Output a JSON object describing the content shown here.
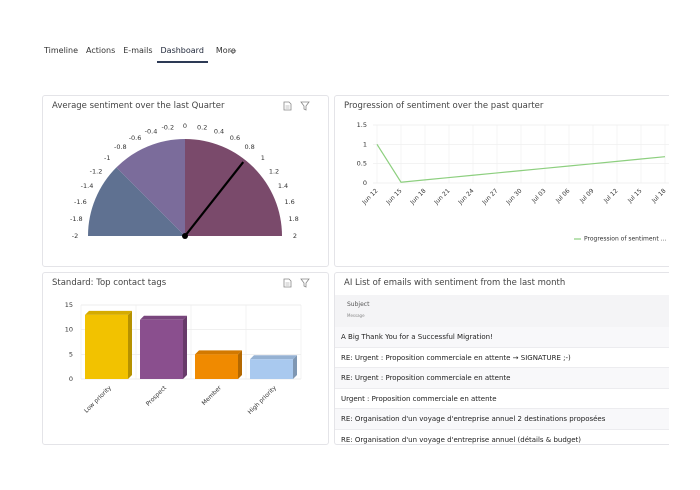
{
  "tabs": {
    "items": [
      "Timeline",
      "Actions",
      "E-mails",
      "Dashboard",
      "More"
    ],
    "active": 3
  },
  "panels": [
    {
      "title": "Average sentiment over the last Quarter",
      "chart": {
        "type": "gauge",
        "value": 0.85,
        "range": [
          -2,
          2
        ],
        "ticks": [
          -2,
          -1.8,
          -1.6,
          -1.4,
          -1.2,
          -1,
          -0.8,
          -0.6,
          -0.4,
          -0.2,
          0,
          0.2,
          0.4,
          0.6,
          0.8,
          1,
          1.2,
          1.4,
          1.6,
          1.8,
          2
        ],
        "bands": [
          {
            "from": -2,
            "to": -1,
            "color": "#5f7191"
          },
          {
            "from": -1,
            "to": 0,
            "color": "#7b6c9b"
          },
          {
            "from": 0,
            "to": 2,
            "color": "#7a4a6b"
          }
        ]
      }
    },
    {
      "title": "Progression of sentiment over the past quarter",
      "chart": {
        "type": "line",
        "categories": [
          "Jun 12",
          "Jun 15",
          "Jun 18",
          "Jun 21",
          "Jun 24",
          "Jun 27",
          "Jun 30",
          "Jul 03",
          "Jul 06",
          "Jul 09",
          "Jul 12",
          "Jul 15",
          "Jul 18"
        ],
        "series": [
          {
            "name": "Progression of sentiment ...",
            "color": "#8dcf7f",
            "values": [
              1,
              0.02,
              0.08,
              0.14,
              0.2,
              0.26,
              0.32,
              0.38,
              0.44,
              0.5,
              0.56,
              0.62,
              0.68
            ]
          }
        ],
        "ylim": [
          0,
          1.5
        ],
        "yticks": [
          0,
          0.5,
          1,
          1.5
        ],
        "grid": true
      }
    },
    {
      "title": "Standard: Top contact tags",
      "chart": {
        "type": "bar3d",
        "categories": [
          "Low priority",
          "Prospect",
          "Member",
          "High priority"
        ],
        "values": [
          13,
          12,
          5,
          4
        ],
        "colors": [
          "#f2c200",
          "#8a4f8e",
          "#f08a00",
          "#a9c9ef"
        ],
        "ylim": [
          0,
          15
        ],
        "yticks": [
          0,
          5,
          10,
          15
        ],
        "grid": true
      }
    },
    {
      "title": "AI List of emails with sentiment from the last month",
      "table": {
        "column": {
          "title": "Subject",
          "subtitle": "Message"
        },
        "rows": [
          "A Big Thank You for a Successful Migration!",
          "RE: Urgent : Proposition commerciale en attente → SIGNATURE ;-)",
          "RE: Urgent : Proposition commerciale en attente",
          "Urgent : Proposition commerciale en attente",
          "RE: Organisation d'un voyage d'entreprise annuel 2 destinations proposées",
          "RE: Organisation d'un voyage d'entreprise annuel (détails & budget)"
        ]
      }
    }
  ]
}
